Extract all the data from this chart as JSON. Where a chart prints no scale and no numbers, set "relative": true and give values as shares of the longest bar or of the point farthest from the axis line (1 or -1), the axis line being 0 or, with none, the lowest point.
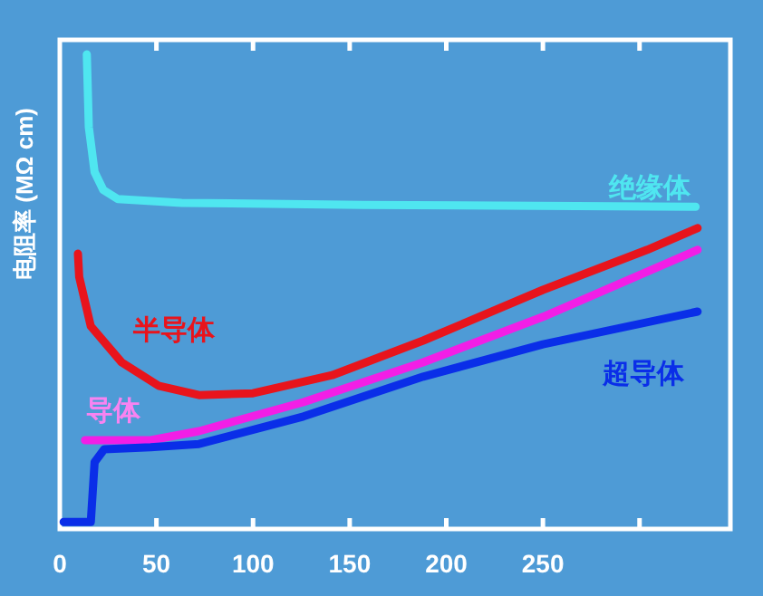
{
  "chart_data": {
    "type": "line",
    "relative": true,
    "ylabel": "电阻率 (MΩ cm)",
    "xlim": [
      0,
      347
    ],
    "xticks": [
      0,
      50,
      100,
      150,
      200,
      250,
      {
        "value": 300,
        "label": null
      }
    ],
    "grid": false,
    "marker": "none",
    "line_style": "solid",
    "series": [
      {
        "name": "绝缘体",
        "color": "#4fe6f0",
        "x": [
          14,
          15,
          18,
          22.5,
          30,
          63,
          157,
          329
        ],
        "values": [
          1.0,
          0.847,
          0.752,
          0.714,
          0.695,
          0.687,
          0.683,
          0.679
        ]
      },
      {
        "name": "半导体",
        "color": "#e8141c",
        "x": [
          9.4,
          10,
          16,
          32,
          51,
          72,
          100,
          141,
          188,
          250,
          304,
          330
        ],
        "values": [
          0.58,
          0.531,
          0.427,
          0.351,
          0.302,
          0.282,
          0.286,
          0.324,
          0.397,
          0.504,
          0.588,
          0.634
        ]
      },
      {
        "name": "导体",
        "color": "#f21ee6",
        "x": [
          13,
          47,
          72,
          126,
          188,
          250,
          330
        ],
        "values": [
          0.187,
          0.187,
          0.206,
          0.267,
          0.351,
          0.447,
          0.588
        ]
      },
      {
        "name": "超导体",
        "color": "#0a2ee8",
        "x": [
          2,
          16,
          18,
          23,
          47,
          72,
          126,
          188,
          250,
          330
        ],
        "values": [
          0.015,
          0.015,
          0.141,
          0.168,
          0.172,
          0.179,
          0.237,
          0.321,
          0.389,
          0.458
        ]
      }
    ]
  }
}
